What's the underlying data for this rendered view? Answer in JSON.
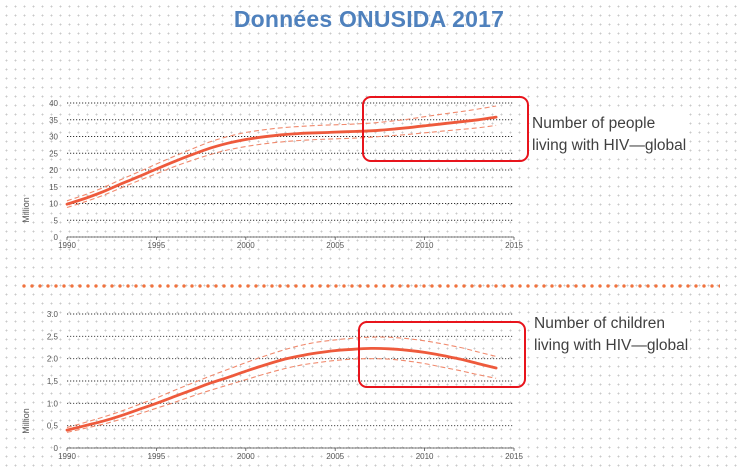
{
  "title": "Données ONUSIDA 2017",
  "colors": {
    "title": "#4f81bd",
    "series_line": "#ee5a3c",
    "uncertainty_band": "#f08a6e",
    "highlight_box": "#e8141c",
    "separator": "#f0733f",
    "gridline": "#333333"
  },
  "captions": {
    "top": {
      "line1": "Number of people",
      "line2": "living with HIV—global"
    },
    "bottom": {
      "line1": "Number of children",
      "line2": "living with HIV—global"
    }
  },
  "chart_data": [
    {
      "type": "line",
      "title": "",
      "xlabel": "",
      "ylabel": "Million",
      "xlim": [
        1990,
        2015
      ],
      "ylim": [
        0,
        40
      ],
      "x_ticks": [
        "1990",
        "1995",
        "2000",
        "2005",
        "2010",
        "2015"
      ],
      "y_ticks": [
        "0",
        "5",
        "10",
        "15",
        "20",
        "25",
        "30",
        "35",
        "40"
      ],
      "grid": true,
      "legend": "none",
      "series": [
        {
          "x": [
            1990,
            1991,
            1992,
            1993,
            1994,
            1995,
            1996,
            1997,
            1998,
            1999,
            2000,
            2001,
            2002,
            2003,
            2004,
            2005,
            2006,
            2007,
            2008,
            2009,
            2010,
            2011,
            2012,
            2013,
            2014
          ],
          "values": [
            9.8,
            11.5,
            13.5,
            15.8,
            18.0,
            20.3,
            22.5,
            24.6,
            26.5,
            28.0,
            29.1,
            29.9,
            30.5,
            30.9,
            31.1,
            31.3,
            31.5,
            31.7,
            32.1,
            32.6,
            33.2,
            33.8,
            34.4,
            35.0,
            35.8
          ],
          "lower": [
            8.8,
            10.5,
            12.4,
            14.6,
            16.8,
            18.9,
            21.0,
            22.9,
            24.6,
            26.0,
            27.0,
            27.8,
            28.4,
            28.8,
            29.1,
            29.3,
            29.5,
            29.8,
            30.2,
            30.6,
            31.1,
            31.6,
            32.1,
            32.6,
            33.3
          ],
          "upper": [
            10.8,
            12.6,
            14.7,
            17.1,
            19.4,
            21.8,
            24.1,
            26.3,
            28.4,
            30.0,
            31.2,
            32.0,
            32.6,
            33.0,
            33.3,
            33.5,
            33.7,
            34.0,
            34.5,
            35.1,
            35.9,
            36.7,
            37.4,
            38.2,
            39.1
          ]
        }
      ]
    },
    {
      "type": "line",
      "title": "",
      "xlabel": "",
      "ylabel": "Million",
      "xlim": [
        1990,
        2015
      ],
      "ylim": [
        0,
        3.0
      ],
      "x_ticks": [
        "1990",
        "1995",
        "2000",
        "2005",
        "2010",
        "2015"
      ],
      "y_ticks": [
        "0",
        "0.5",
        "1.0",
        "1.5",
        "2.0",
        "2.5",
        "3.0"
      ],
      "grid": true,
      "legend": "none",
      "series": [
        {
          "x": [
            1990,
            1991,
            1992,
            1993,
            1994,
            1995,
            1996,
            1997,
            1998,
            1999,
            2000,
            2001,
            2002,
            2003,
            2004,
            2005,
            2006,
            2007,
            2008,
            2009,
            2010,
            2011,
            2012,
            2013,
            2014
          ],
          "values": [
            0.4,
            0.5,
            0.6,
            0.72,
            0.86,
            1.0,
            1.15,
            1.3,
            1.45,
            1.58,
            1.72,
            1.85,
            1.97,
            2.06,
            2.13,
            2.18,
            2.21,
            2.23,
            2.22,
            2.19,
            2.14,
            2.07,
            1.99,
            1.89,
            1.79
          ],
          "lower": [
            0.35,
            0.44,
            0.53,
            0.64,
            0.76,
            0.89,
            1.02,
            1.16,
            1.29,
            1.41,
            1.53,
            1.65,
            1.76,
            1.85,
            1.91,
            1.96,
            1.99,
            2.0,
            1.99,
            1.95,
            1.89,
            1.81,
            1.73,
            1.64,
            1.56
          ],
          "upper": [
            0.46,
            0.57,
            0.69,
            0.82,
            0.97,
            1.12,
            1.29,
            1.45,
            1.61,
            1.76,
            1.91,
            2.05,
            2.18,
            2.29,
            2.37,
            2.42,
            2.46,
            2.48,
            2.48,
            2.45,
            2.4,
            2.33,
            2.25,
            2.15,
            2.05
          ]
        }
      ]
    }
  ]
}
